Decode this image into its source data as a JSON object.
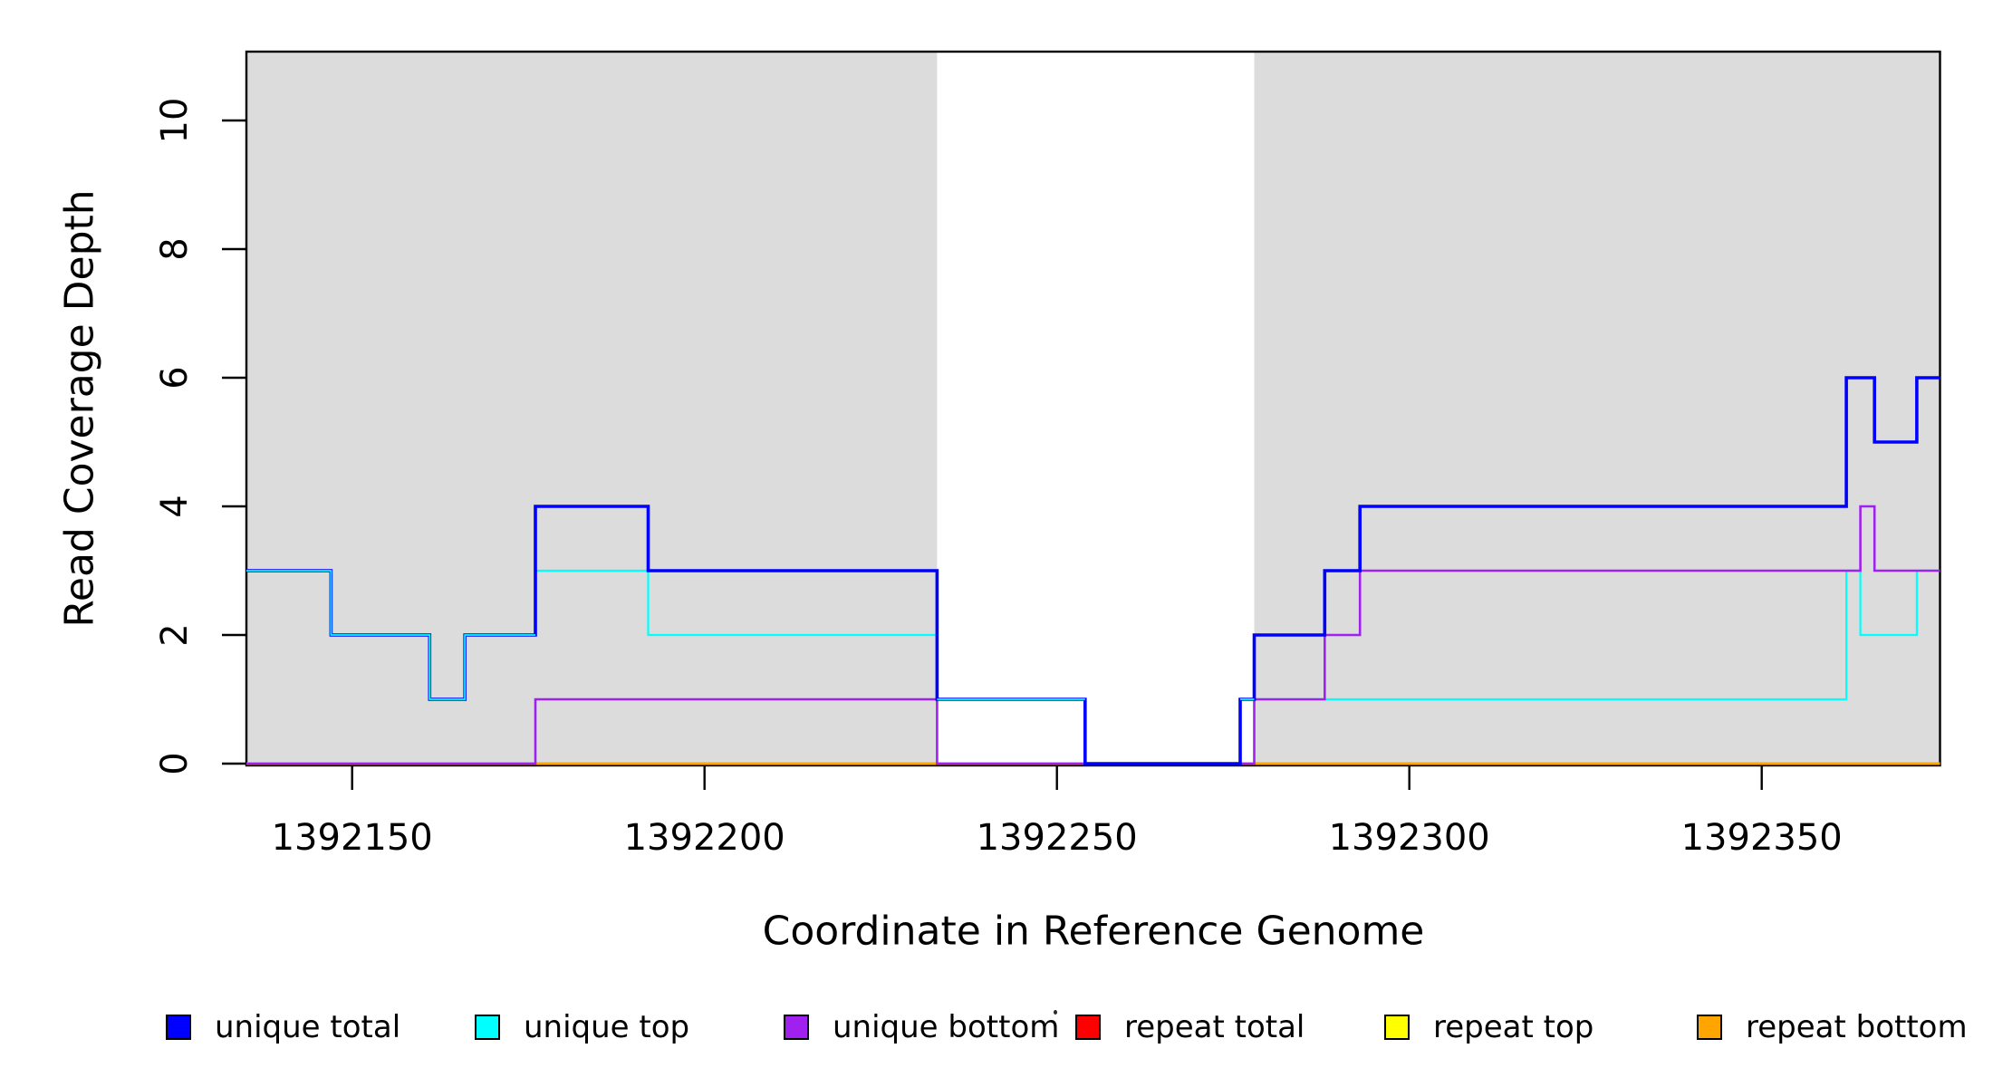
{
  "chart_data": {
    "type": "line",
    "subtype": "step-coverage",
    "title": "",
    "xlabel": "Coordinate in Reference Genome",
    "ylabel": "Read Coverage Depth",
    "xlim": [
      1392135,
      1392375.3
    ],
    "ylim": [
      0,
      11.1
    ],
    "x_ticks": [
      1392150,
      1392200,
      1392250,
      1392300,
      1392350
    ],
    "y_ticks": [
      0,
      2,
      4,
      6,
      8,
      10
    ],
    "grid": false,
    "background_color": "#ffffff",
    "shaded_region_color": "#dcdcdc",
    "shaded_regions": [
      {
        "x0": 1392135,
        "x1": 1392233
      },
      {
        "x0": 1392278,
        "x1": 1392375.3
      }
    ],
    "series": [
      {
        "name": "unique total",
        "color": "#0000ff",
        "steps": [
          [
            1392135,
            3
          ],
          [
            1392147,
            2
          ],
          [
            1392161,
            1
          ],
          [
            1392166,
            2
          ],
          [
            1392176,
            4
          ],
          [
            1392192,
            3
          ],
          [
            1392233,
            1
          ],
          [
            1392254,
            0
          ],
          [
            1392276,
            1
          ],
          [
            1392278,
            2
          ],
          [
            1392288,
            3
          ],
          [
            1392293,
            4
          ],
          [
            1392362,
            6
          ],
          [
            1392366,
            5
          ],
          [
            1392372,
            6
          ]
        ]
      },
      {
        "name": "unique top",
        "color": "#00ffff",
        "steps": [
          [
            1392135,
            3
          ],
          [
            1392147,
            2
          ],
          [
            1392161,
            1
          ],
          [
            1392166,
            2
          ],
          [
            1392176,
            3
          ],
          [
            1392192,
            2
          ],
          [
            1392233,
            1
          ],
          [
            1392254,
            0
          ],
          [
            1392276,
            1
          ],
          [
            1392362,
            3
          ],
          [
            1392364,
            2
          ],
          [
            1392372,
            3
          ]
        ]
      },
      {
        "name": "unique bottom",
        "color": "#a020f0",
        "steps": [
          [
            1392135,
            0
          ],
          [
            1392176,
            1
          ],
          [
            1392233,
            0
          ],
          [
            1392278,
            1
          ],
          [
            1392288,
            2
          ],
          [
            1392293,
            3
          ],
          [
            1392364,
            4
          ],
          [
            1392366,
            3
          ]
        ]
      },
      {
        "name": "repeat total",
        "color": "#ff0000",
        "steps": [
          [
            1392135,
            0
          ]
        ]
      },
      {
        "name": "repeat top",
        "color": "#ffff00",
        "steps": [
          [
            1392135,
            0
          ]
        ]
      },
      {
        "name": "repeat bottom",
        "color": "#ffa500",
        "steps": [
          [
            1392135,
            0
          ]
        ]
      }
    ],
    "legend": [
      {
        "label": "unique total",
        "color": "#0000ff"
      },
      {
        "label": "unique top",
        "color": "#00ffff"
      },
      {
        "label": "unique bottom",
        "color": "#a020f0"
      },
      {
        "label": "repeat total",
        "color": "#ff0000"
      },
      {
        "label": "repeat top",
        "color": "#ffff00"
      },
      {
        "label": "repeat bottom",
        "color": "#ffa500"
      }
    ],
    "legend_position": "bottom-horizontal"
  }
}
